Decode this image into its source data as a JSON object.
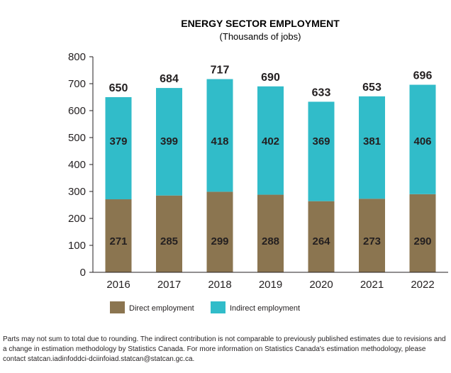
{
  "chart_data": {
    "type": "bar",
    "stacked": true,
    "title": "ENERGY SECTOR EMPLOYMENT",
    "subtitle": "(Thousands of jobs)",
    "categories": [
      "2016",
      "2017",
      "2018",
      "2019",
      "2020",
      "2021",
      "2022"
    ],
    "series": [
      {
        "name": "Direct employment",
        "color": "#8b7550",
        "values": [
          271,
          285,
          299,
          288,
          264,
          273,
          290
        ]
      },
      {
        "name": "Indirect employment",
        "color": "#31bcc9",
        "values": [
          379,
          399,
          418,
          402,
          369,
          381,
          406
        ]
      }
    ],
    "totals": [
      650,
      684,
      717,
      690,
      633,
      653,
      696
    ],
    "ylim": [
      0,
      800
    ],
    "yticks": [
      0,
      100,
      200,
      300,
      400,
      500,
      600,
      700,
      800
    ],
    "grid": false,
    "legend_position": "bottom-left"
  },
  "footnote": "Parts may not sum to total due to rounding. The indirect contribution is not comparable to previously published estimates due to revisions and a change in estimation methodology by Statistics Canada. For more information on Statistics Canada's estimation methodology, please contact statcan.iadinfoddci-dciinfoiad.statcan@statcan.gc.ca."
}
